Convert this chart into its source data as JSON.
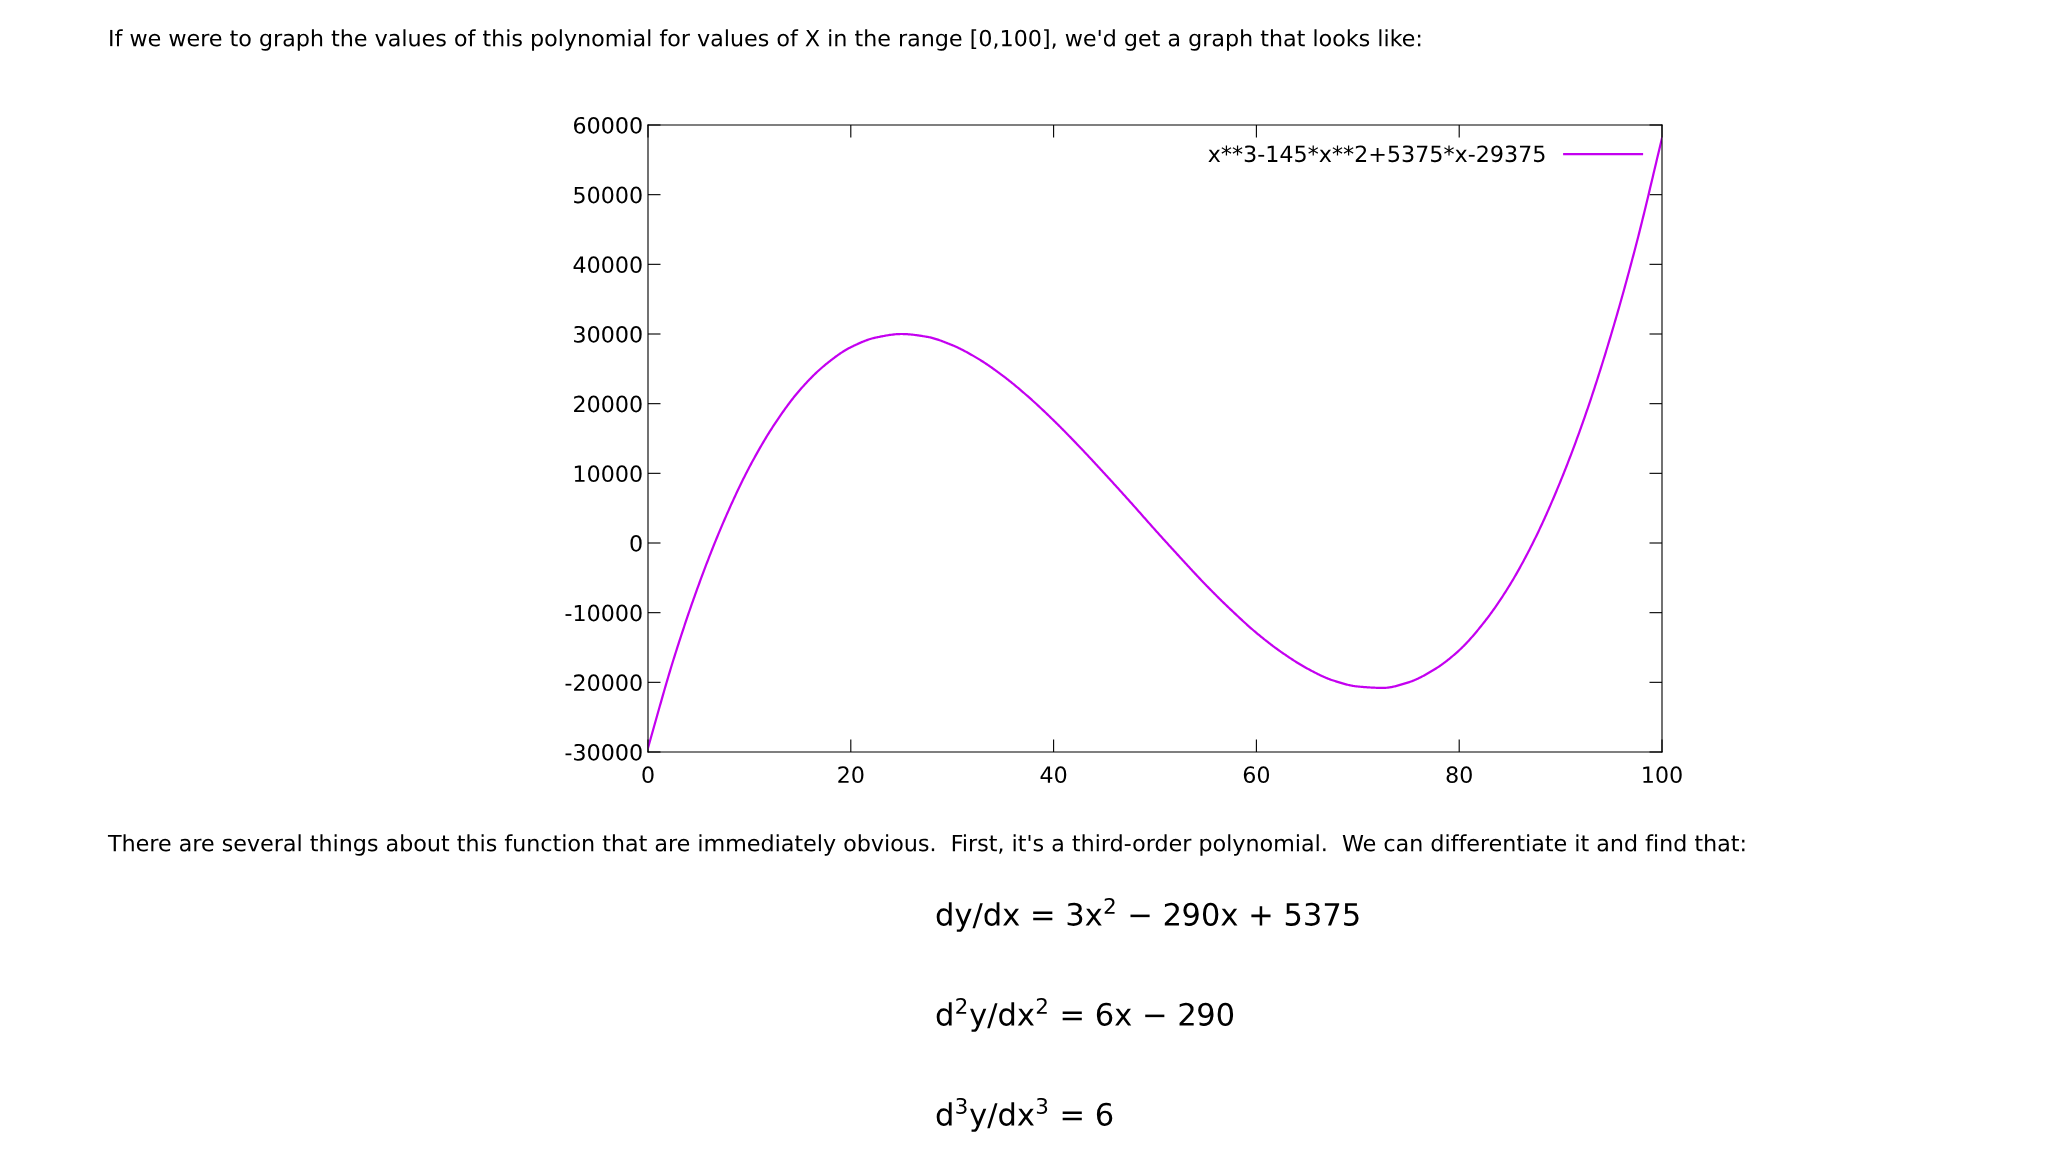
{
  "chart_data": {
    "type": "line",
    "x": [
      0,
      2.5,
      5,
      7.5,
      10,
      12.5,
      15,
      17.5,
      20,
      22.5,
      25,
      27.5,
      30,
      32.5,
      35,
      37.5,
      40,
      42.5,
      45,
      47.5,
      50,
      52.5,
      55,
      57.5,
      60,
      62.5,
      65,
      67.5,
      70,
      72.5,
      75,
      77.5,
      80,
      82.5,
      85,
      87.5,
      90,
      92.5,
      95,
      97.5,
      100
    ],
    "series": [
      {
        "name": "x**3-145*x**2+5375*x-29375",
        "color": "#c400f0",
        "values": [
          -29400,
          -16800,
          -6000,
          3200,
          10900,
          17100,
          22000,
          25600,
          28100,
          29500,
          30000,
          29600,
          28400,
          26500,
          24000,
          21000,
          17600,
          13900,
          10000,
          6000,
          1900,
          -2100,
          -6000,
          -9600,
          -12900,
          -15700,
          -18000,
          -19700,
          -20600,
          -20800,
          -20000,
          -18200,
          -15400,
          -11300,
          -6000,
          700,
          8900,
          18600,
          30000,
          43100,
          58100
        ]
      }
    ],
    "xlim": [
      0,
      100
    ],
    "xticks": [
      0,
      20,
      40,
      60,
      80,
      100
    ],
    "ylim": [
      -30000,
      60000
    ],
    "yticks": [
      -30000,
      -20000,
      -10000,
      0,
      10000,
      20000,
      30000,
      40000,
      50000,
      60000
    ],
    "grid": false,
    "legend": "top right",
    "marker": "none",
    "line_style": "solid",
    "annotations": [
      "If we were to graph the values of this polynomial for values of X in the range [0,100], we'd get a graph that looks like:",
      "There are several things about this function that are immediately obvious.  First, it's a third-order polynomial.  We can differentiate it and find that:",
      "dy/dx = 3x$^{2}$ − 290x + 5375",
      "d$^{2}$y/dx$^{2}$ = 6x − 290",
      "d$^{3}$y/dx$^{3}$ = 6"
    ]
  }
}
